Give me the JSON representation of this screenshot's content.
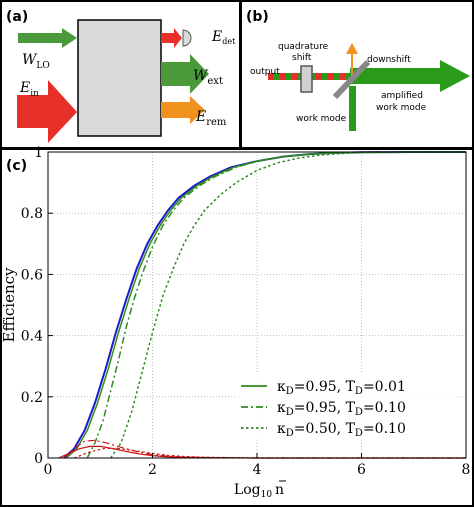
{
  "panel_a": {
    "label": "(a)",
    "labels": {
      "wlo_main": "W",
      "wlo_sub": "LO",
      "ein_main": "E",
      "ein_sub": "in",
      "edet_main": "E",
      "edet_sub": "det",
      "wext_main": "W",
      "wext_sub": "ext",
      "erem_main": "E",
      "erem_sub": "rem"
    },
    "colors": {
      "green": "#4a9a3c",
      "red": "#e8302a",
      "orange": "#f0921e",
      "box": "#d9d9d9"
    }
  },
  "panel_b": {
    "label": "(b)",
    "labels": {
      "quadrature_1": "quadrature",
      "quadrature_2": "shift",
      "output": "output",
      "downshift": "downshift",
      "amplified_1": "amplified",
      "amplified_2": "work mode",
      "work_mode": "work mode"
    },
    "colors": {
      "green": "#2a9a1a",
      "red": "#e8302a",
      "orange": "#f0921e",
      "mirror": "#888888"
    }
  },
  "chart_label": "(c)",
  "chart_data": {
    "type": "line",
    "xlabel_main": "Log",
    "xlabel_sub": "10",
    "xlabel_var": "n",
    "ylabel": "Efficiency",
    "xlim": [
      0,
      8
    ],
    "ylim": [
      0,
      1
    ],
    "xticks": [
      0,
      2,
      4,
      6,
      8
    ],
    "yticks": [
      0,
      0.2,
      0.4,
      0.6,
      0.8,
      1
    ],
    "ytick_labels": [
      "0",
      "0.2",
      "0.4",
      "0.6",
      "0.8",
      "1"
    ],
    "grid": true,
    "legend_position": "lower-right",
    "legend": [
      {
        "kappa_sym": "κ",
        "kappa_sub": "D",
        "kappa_val": "=0.95, T",
        "t_sub": "D",
        "t_val": "=0.01",
        "style": "solid",
        "color": "#2e8b1e"
      },
      {
        "kappa_sym": "κ",
        "kappa_sub": "D",
        "kappa_val": "=0.95, T",
        "t_sub": "D",
        "t_val": "=0.10",
        "style": "dashdot",
        "color": "#2e8b1e"
      },
      {
        "kappa_sym": "κ",
        "kappa_sub": "D",
        "kappa_val": "=0.50, T",
        "t_sub": "D",
        "t_val": "=0.10",
        "style": "dotted",
        "color": "#2e8b1e"
      }
    ],
    "series": [
      {
        "color": "#1a1acc",
        "style": "solid",
        "width": 2,
        "x": [
          0.3,
          0.5,
          0.7,
          0.9,
          1.1,
          1.3,
          1.5,
          1.7,
          1.9,
          2.1,
          2.3,
          2.5,
          2.8,
          3.1,
          3.5,
          4.0,
          4.5,
          5.0,
          5.5,
          6.0,
          7.0,
          8.0
        ],
        "y": [
          0.0,
          0.03,
          0.09,
          0.18,
          0.29,
          0.41,
          0.52,
          0.62,
          0.7,
          0.76,
          0.81,
          0.85,
          0.89,
          0.92,
          0.95,
          0.97,
          0.985,
          0.993,
          0.997,
          0.999,
          1.0,
          1.0
        ]
      },
      {
        "color": "#2e8b1e",
        "style": "solid",
        "width": 1.5,
        "x": [
          0.35,
          0.55,
          0.75,
          0.95,
          1.15,
          1.35,
          1.55,
          1.75,
          1.95,
          2.15,
          2.35,
          2.55,
          2.85,
          3.15,
          3.55,
          4.0,
          4.5,
          5.0,
          5.5,
          6.0,
          7.0,
          8.0
        ],
        "y": [
          0.0,
          0.03,
          0.09,
          0.18,
          0.29,
          0.41,
          0.52,
          0.62,
          0.7,
          0.76,
          0.81,
          0.85,
          0.89,
          0.92,
          0.95,
          0.97,
          0.985,
          0.993,
          0.997,
          0.999,
          1.0,
          1.0
        ]
      },
      {
        "color": "#2e8b1e",
        "style": "dashdot",
        "width": 1.5,
        "x": [
          0.75,
          0.9,
          1.05,
          1.2,
          1.35,
          1.5,
          1.65,
          1.8,
          2.0,
          2.2,
          2.4,
          2.6,
          2.9,
          3.2,
          3.6,
          4.0,
          4.5,
          5.0,
          5.5,
          6.0,
          7.0,
          8.0
        ],
        "y": [
          0.0,
          0.05,
          0.12,
          0.22,
          0.32,
          0.43,
          0.52,
          0.6,
          0.69,
          0.76,
          0.81,
          0.85,
          0.89,
          0.92,
          0.95,
          0.97,
          0.985,
          0.993,
          0.997,
          0.999,
          1.0,
          1.0
        ]
      },
      {
        "color": "#2e8b1e",
        "style": "dotted",
        "width": 1.5,
        "x": [
          1.2,
          1.4,
          1.6,
          1.8,
          2.0,
          2.2,
          2.4,
          2.6,
          2.8,
          3.0,
          3.3,
          3.6,
          4.0,
          4.4,
          4.8,
          5.2,
          5.6,
          6.0,
          7.0,
          8.0
        ],
        "y": [
          0.0,
          0.05,
          0.15,
          0.28,
          0.41,
          0.53,
          0.62,
          0.7,
          0.76,
          0.81,
          0.86,
          0.9,
          0.94,
          0.965,
          0.98,
          0.99,
          0.995,
          0.998,
          1.0,
          1.0
        ]
      },
      {
        "color": "#cc1111",
        "style": "solid",
        "width": 1.2,
        "x": [
          0.2,
          0.4,
          0.6,
          0.8,
          1.0,
          1.2,
          1.4,
          1.6,
          1.8,
          2.0,
          2.2,
          2.5,
          2.8,
          3.2,
          4.0,
          8.0
        ],
        "y": [
          0.0,
          0.015,
          0.03,
          0.038,
          0.038,
          0.032,
          0.025,
          0.018,
          0.012,
          0.008,
          0.005,
          0.003,
          0.002,
          0.001,
          0.0,
          0.0
        ]
      },
      {
        "color": "#cc1111",
        "style": "dashdot",
        "width": 1.2,
        "x": [
          0.3,
          0.5,
          0.7,
          0.9,
          1.1,
          1.3,
          1.5,
          1.7,
          1.9,
          2.1,
          2.3,
          2.6,
          2.9,
          3.3,
          4.0,
          8.0
        ],
        "y": [
          0.0,
          0.03,
          0.055,
          0.058,
          0.05,
          0.04,
          0.03,
          0.021,
          0.014,
          0.009,
          0.006,
          0.003,
          0.002,
          0.001,
          0.0,
          0.0
        ]
      },
      {
        "color": "#cc1111",
        "style": "dotted",
        "width": 1.2,
        "x": [
          0.5,
          0.8,
          1.1,
          1.4,
          1.7,
          2.0,
          2.3,
          2.6,
          2.9,
          3.2,
          3.6,
          4.0,
          8.0
        ],
        "y": [
          0.0,
          0.02,
          0.032,
          0.03,
          0.023,
          0.015,
          0.009,
          0.005,
          0.003,
          0.002,
          0.001,
          0.0,
          0.0
        ]
      }
    ]
  }
}
